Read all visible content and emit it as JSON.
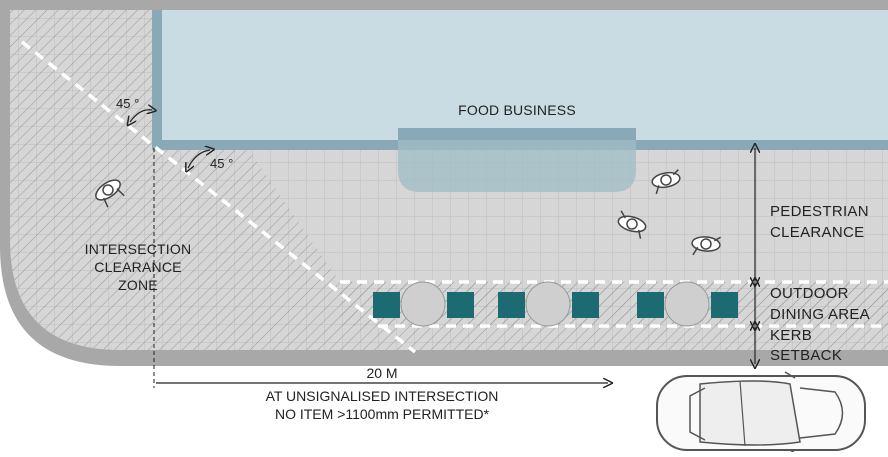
{
  "labels": {
    "food_business": "FOOD BUSINESS",
    "intersection_zone": [
      "INTERSECTION",
      "CLEARANCE",
      "ZONE"
    ],
    "angle_top": "45 °",
    "angle_bottom": "45 °",
    "pedestrian_clearance": [
      "PEDESTRIAN",
      "CLEARANCE"
    ],
    "outdoor_dining": [
      "OUTDOOR",
      "DINING AREA"
    ],
    "kerb_setback": [
      "KERB",
      "SETBACK"
    ],
    "distance": "20 M",
    "rule_line1": "AT UNSIGNALISED INTERSECTION",
    "rule_line2": "NO ITEM >1100mm PERMITTED*"
  },
  "icons": {
    "pedestrian": "pedestrian-top-view-icon",
    "car": "car-top-view-icon",
    "table": "table-with-chairs-icon"
  },
  "colors": {
    "building_fill": "#c9dce3",
    "building_wall": "#8aa9b6",
    "pavement": "#d4d4d4",
    "grid_line": "#b8b8b8",
    "kerb": "#a9a9a9",
    "chair": "#1c6b73",
    "table": "#cfcfcf",
    "dashed": "#ffffff",
    "text": "#222222"
  }
}
